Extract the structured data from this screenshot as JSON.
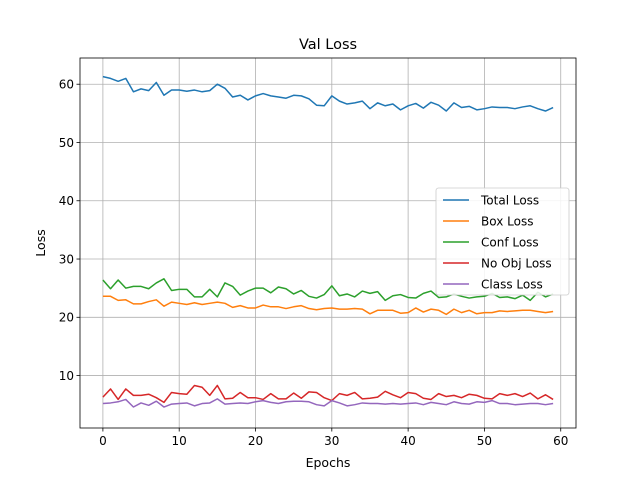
{
  "chart_data": {
    "type": "line",
    "title": "Val Loss",
    "xlabel": "Epochs",
    "ylabel": "Loss",
    "xlim": [
      -3,
      62
    ],
    "ylim": [
      1,
      64.5
    ],
    "xticks": [
      0,
      10,
      20,
      30,
      40,
      50,
      60
    ],
    "yticks": [
      10,
      20,
      30,
      40,
      50,
      60
    ],
    "grid": true,
    "legend_position": "center-right",
    "x": [
      0,
      1,
      2,
      3,
      4,
      5,
      6,
      7,
      8,
      9,
      10,
      11,
      12,
      13,
      14,
      15,
      16,
      17,
      18,
      19,
      20,
      21,
      22,
      23,
      24,
      25,
      26,
      27,
      28,
      29,
      30,
      31,
      32,
      33,
      34,
      35,
      36,
      37,
      38,
      39,
      40,
      41,
      42,
      43,
      44,
      45,
      46,
      47,
      48,
      49,
      50,
      51,
      52,
      53,
      54,
      55,
      56,
      57,
      58,
      59
    ],
    "series": [
      {
        "name": "Total Loss",
        "color": "#1f77b4",
        "values": [
          61.3,
          61.0,
          60.5,
          61.0,
          58.7,
          59.2,
          58.9,
          60.3,
          58.1,
          59.0,
          59.0,
          58.8,
          59.0,
          58.7,
          58.9,
          60.0,
          59.3,
          57.8,
          58.1,
          57.3,
          58.0,
          58.4,
          58.0,
          57.8,
          57.6,
          58.1,
          58.0,
          57.5,
          56.4,
          56.3,
          58.0,
          57.1,
          56.6,
          56.8,
          57.1,
          55.8,
          56.8,
          56.3,
          56.6,
          55.6,
          56.3,
          56.7,
          55.9,
          56.9,
          56.4,
          55.4,
          56.8,
          56.0,
          56.2,
          55.6,
          55.8,
          56.1,
          56.0,
          56.0,
          55.8,
          56.1,
          56.3,
          55.8,
          55.4,
          56.0
        ]
      },
      {
        "name": "Box Loss",
        "color": "#ff7f0e",
        "values": [
          23.6,
          23.6,
          22.9,
          23.0,
          22.3,
          22.3,
          22.7,
          23.0,
          21.9,
          22.6,
          22.4,
          22.2,
          22.5,
          22.2,
          22.4,
          22.6,
          22.4,
          21.7,
          22.0,
          21.6,
          21.6,
          22.1,
          21.8,
          21.8,
          21.5,
          21.8,
          22.0,
          21.5,
          21.3,
          21.5,
          21.6,
          21.4,
          21.4,
          21.5,
          21.4,
          20.6,
          21.2,
          21.2,
          21.2,
          20.7,
          20.8,
          21.6,
          20.9,
          21.4,
          21.2,
          20.5,
          21.4,
          20.8,
          21.2,
          20.6,
          20.8,
          20.8,
          21.1,
          21.0,
          21.1,
          21.2,
          21.2,
          21.0,
          20.8,
          21.0
        ]
      },
      {
        "name": "Conf Loss",
        "color": "#2ca02c",
        "values": [
          26.4,
          24.9,
          26.4,
          25.0,
          25.3,
          25.3,
          24.9,
          25.9,
          26.6,
          24.6,
          24.8,
          24.8,
          23.5,
          23.5,
          24.8,
          23.5,
          25.9,
          25.3,
          23.8,
          24.5,
          25.0,
          25.0,
          24.2,
          25.2,
          24.9,
          24.0,
          24.6,
          23.6,
          23.3,
          23.9,
          25.4,
          23.7,
          24.0,
          23.5,
          24.5,
          24.1,
          24.4,
          22.9,
          23.7,
          23.9,
          23.4,
          23.3,
          24.1,
          24.5,
          23.4,
          23.5,
          24.0,
          23.6,
          23.3,
          23.5,
          23.6,
          24.1,
          23.4,
          23.5,
          23.2,
          23.8,
          22.9,
          24.3,
          23.5,
          24.0
        ]
      },
      {
        "name": "No Obj Loss",
        "color": "#d62728",
        "values": [
          6.3,
          7.7,
          5.9,
          7.7,
          6.6,
          6.6,
          6.8,
          6.2,
          5.4,
          7.1,
          6.9,
          6.8,
          8.3,
          8.0,
          6.6,
          8.3,
          6.0,
          6.1,
          7.1,
          6.2,
          6.2,
          5.9,
          6.9,
          6.0,
          6.0,
          7.0,
          6.1,
          7.2,
          7.1,
          6.2,
          5.7,
          6.9,
          6.6,
          7.1,
          6.0,
          6.1,
          6.3,
          7.3,
          6.7,
          6.2,
          7.1,
          6.9,
          6.1,
          5.9,
          6.9,
          6.4,
          6.6,
          6.2,
          6.8,
          6.6,
          6.1,
          6.0,
          6.9,
          6.6,
          6.9,
          6.4,
          7.0,
          6.0,
          6.7,
          5.9
        ]
      },
      {
        "name": "Class Loss",
        "color": "#9467bd",
        "values": [
          5.2,
          5.3,
          5.5,
          5.9,
          4.6,
          5.3,
          4.9,
          5.6,
          4.6,
          5.1,
          5.2,
          5.3,
          4.8,
          5.2,
          5.3,
          6.0,
          5.1,
          5.2,
          5.3,
          5.2,
          5.5,
          5.7,
          5.4,
          5.2,
          5.5,
          5.6,
          5.6,
          5.5,
          5.0,
          4.8,
          5.7,
          5.3,
          4.8,
          5.0,
          5.3,
          5.2,
          5.2,
          5.1,
          5.2,
          5.1,
          5.2,
          5.3,
          5.0,
          5.4,
          5.2,
          5.0,
          5.5,
          5.2,
          5.1,
          5.5,
          5.4,
          5.7,
          5.2,
          5.2,
          5.0,
          5.1,
          5.2,
          5.2,
          5.0,
          5.2
        ]
      }
    ]
  }
}
